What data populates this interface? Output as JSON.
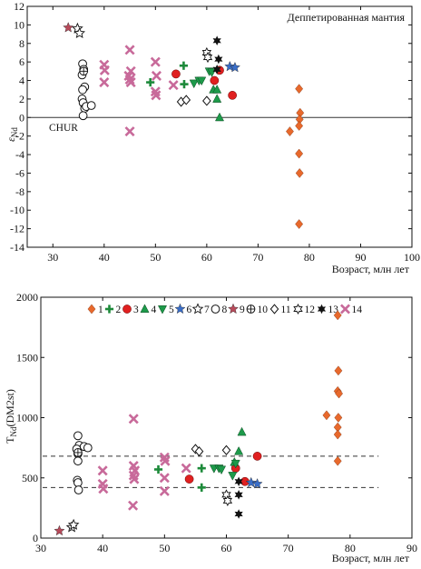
{
  "chart_data": [
    {
      "type": "scatter",
      "title": "",
      "annotation": "Деппетированная мантия",
      "xlabel": "Возраст, млн лет",
      "ylabel": "εNd",
      "ylabel_main": "ε",
      "ylabel_sub": "Nd",
      "xlim": [
        25,
        100
      ],
      "ylim": [
        -14,
        12
      ],
      "xticks": [
        30,
        40,
        50,
        60,
        70,
        80,
        90,
        100
      ],
      "yticks": [
        -14,
        -12,
        -10,
        -8,
        -6,
        -4,
        -2,
        0,
        2,
        4,
        6,
        8,
        10,
        12
      ],
      "reference_line": {
        "y": 0,
        "label": "CHUR"
      },
      "series": [
        {
          "name": "1",
          "marker": "diamond",
          "color": "#e8692c",
          "points": [
            [
              76.2,
              -1.5
            ],
            [
              78.0,
              3.1
            ],
            [
              78.2,
              0.5
            ],
            [
              78.1,
              -0.2
            ],
            [
              78.0,
              -0.9
            ],
            [
              78.0,
              -3.9
            ],
            [
              78.1,
              -6.0
            ],
            [
              78.0,
              -11.5
            ]
          ]
        },
        {
          "name": "2",
          "marker": "plus",
          "color": "#1d8a3a",
          "points": [
            [
              49.0,
              3.8
            ],
            [
              55.5,
              5.6
            ],
            [
              55.6,
              3.6
            ]
          ]
        },
        {
          "name": "3",
          "marker": "circle",
          "color": "#e02020",
          "points": [
            [
              54.0,
              4.7
            ],
            [
              61.5,
              4.0
            ],
            [
              62.5,
              5.1
            ],
            [
              65.0,
              2.4
            ]
          ]
        },
        {
          "name": "4",
          "marker": "triangle-up",
          "color": "#1d9a4a",
          "points": [
            [
              61.3,
              3.0
            ],
            [
              62.0,
              3.0
            ],
            [
              62.0,
              2.0
            ],
            [
              62.5,
              0.0
            ]
          ]
        },
        {
          "name": "5",
          "marker": "triangle-down",
          "color": "#1d9a4a",
          "points": [
            [
              57.5,
              3.7
            ],
            [
              58.5,
              4.0
            ],
            [
              59.0,
              4.0
            ],
            [
              60.5,
              5.0
            ],
            [
              61.0,
              4.9
            ]
          ]
        },
        {
          "name": "6",
          "marker": "star",
          "color": "#3a6ec8",
          "points": [
            [
              64.5,
              5.5
            ],
            [
              65.5,
              5.4
            ]
          ]
        },
        {
          "name": "7",
          "marker": "star-open",
          "color": "#111111",
          "points": [
            [
              34.8,
              9.6
            ],
            [
              35.2,
              9.1
            ]
          ]
        },
        {
          "name": "8",
          "marker": "circle-open",
          "color": "#111111",
          "points": [
            [
              35.8,
              5.8
            ],
            [
              36.0,
              5.2
            ],
            [
              35.7,
              4.6
            ],
            [
              36.2,
              3.3
            ],
            [
              35.8,
              3.0
            ],
            [
              35.7,
              2.0
            ],
            [
              35.9,
              1.6
            ],
            [
              36.2,
              1.0
            ],
            [
              36.5,
              1.2
            ],
            [
              37.5,
              1.3
            ],
            [
              35.9,
              0.2
            ]
          ]
        },
        {
          "name": "9",
          "marker": "star",
          "color": "#b84a5a",
          "points": [
            [
              33.0,
              9.7
            ]
          ]
        },
        {
          "name": "10",
          "marker": "circle-cross",
          "color": "#111111",
          "points": [
            [
              36.0,
              5.0
            ]
          ]
        },
        {
          "name": "11",
          "marker": "diamond-open",
          "color": "#111111",
          "points": [
            [
              55.0,
              1.7
            ],
            [
              56.0,
              1.9
            ],
            [
              60.0,
              1.8
            ]
          ]
        },
        {
          "name": "12",
          "marker": "star-open-6",
          "color": "#111111",
          "points": [
            [
              60.0,
              7.0
            ],
            [
              60.2,
              6.5
            ]
          ]
        },
        {
          "name": "13",
          "marker": "star-6",
          "color": "#111111",
          "points": [
            [
              62.0,
              8.3
            ],
            [
              62.3,
              6.3
            ],
            [
              62.0,
              5.2
            ]
          ]
        },
        {
          "name": "14",
          "marker": "x",
          "color": "#c86a9a",
          "points": [
            [
              40.0,
              5.7
            ],
            [
              40.1,
              5.1
            ],
            [
              40.0,
              3.8
            ],
            [
              45.0,
              7.3
            ],
            [
              45.2,
              5.0
            ],
            [
              44.8,
              4.5
            ],
            [
              45.0,
              4.1
            ],
            [
              45.2,
              3.8
            ],
            [
              45.0,
              -1.5
            ],
            [
              50.0,
              6.0
            ],
            [
              50.2,
              4.5
            ],
            [
              50.0,
              2.8
            ],
            [
              50.1,
              2.4
            ],
            [
              53.5,
              3.5
            ]
          ]
        }
      ]
    },
    {
      "type": "scatter",
      "title": "",
      "xlabel": "Возраст, млн лет",
      "ylabel": "TNd(DM2st)",
      "ylabel_main": "T",
      "ylabel_sub": "Nd",
      "ylabel_tail": "(DM2st)",
      "xlim": [
        30,
        90
      ],
      "ylim": [
        0,
        2000
      ],
      "xticks": [
        30,
        40,
        50,
        60,
        70,
        80,
        90
      ],
      "yticks": [
        0,
        500,
        1000,
        1500,
        2000
      ],
      "reference_lines": [
        {
          "y": 680
        },
        {
          "y": 420
        }
      ],
      "legend": {
        "placement": "top",
        "labels": [
          "1",
          "2",
          "3",
          "4",
          "5",
          "6",
          "7",
          "8",
          "9",
          "10",
          "11",
          "12",
          "13",
          "14"
        ]
      },
      "series": [
        {
          "name": "1",
          "marker": "diamond",
          "color": "#e8692c",
          "points": [
            [
              76.2,
              1020
            ],
            [
              78.0,
              1850
            ],
            [
              78.1,
              1390
            ],
            [
              78.0,
              1220
            ],
            [
              78.2,
              1200
            ],
            [
              78.1,
              1000
            ],
            [
              78.0,
              920
            ],
            [
              78.0,
              860
            ],
            [
              78.0,
              640
            ]
          ]
        },
        {
          "name": "2",
          "marker": "plus",
          "color": "#1d8a3a",
          "points": [
            [
              49.0,
              570
            ],
            [
              56.0,
              580
            ],
            [
              56.0,
              420
            ]
          ]
        },
        {
          "name": "3",
          "marker": "circle",
          "color": "#e02020",
          "points": [
            [
              54.0,
              490
            ],
            [
              61.5,
              580
            ],
            [
              63.0,
              470
            ],
            [
              65.0,
              680
            ]
          ]
        },
        {
          "name": "4",
          "marker": "triangle-up",
          "color": "#1d9a4a",
          "points": [
            [
              61.3,
              630
            ],
            [
              62.0,
              720
            ],
            [
              62.5,
              880
            ]
          ]
        },
        {
          "name": "5",
          "marker": "triangle-down",
          "color": "#1d9a4a",
          "points": [
            [
              58.0,
              580
            ],
            [
              58.8,
              580
            ],
            [
              59.2,
              570
            ],
            [
              61.0,
              520
            ],
            [
              61.5,
              620
            ]
          ]
        },
        {
          "name": "6",
          "marker": "star",
          "color": "#3a6ec8",
          "points": [
            [
              64.0,
              460
            ],
            [
              65.0,
              450
            ]
          ]
        },
        {
          "name": "7",
          "marker": "star-open",
          "color": "#111111",
          "points": [
            [
              35.0,
              90
            ],
            [
              35.3,
              110
            ]
          ]
        },
        {
          "name": "8",
          "marker": "circle-open",
          "color": "#111111",
          "points": [
            [
              36.0,
              850
            ],
            [
              36.2,
              770
            ],
            [
              35.8,
              740
            ],
            [
              37.0,
              760
            ],
            [
              37.6,
              750
            ],
            [
              36.0,
              700
            ],
            [
              36.0,
              640
            ],
            [
              35.9,
              480
            ],
            [
              36.0,
              460
            ],
            [
              36.1,
              400
            ]
          ]
        },
        {
          "name": "9",
          "marker": "star",
          "color": "#b84a5a",
          "points": [
            [
              33.0,
              60
            ]
          ]
        },
        {
          "name": "10",
          "marker": "circle-cross",
          "color": "#111111",
          "points": [
            [
              36.0,
              710
            ]
          ]
        },
        {
          "name": "11",
          "marker": "diamond-open",
          "color": "#111111",
          "points": [
            [
              55.0,
              740
            ],
            [
              55.6,
              720
            ],
            [
              60.0,
              730
            ]
          ]
        },
        {
          "name": "12",
          "marker": "star-open-6",
          "color": "#111111",
          "points": [
            [
              60.0,
              360
            ],
            [
              60.2,
              310
            ]
          ]
        },
        {
          "name": "13",
          "marker": "star-6",
          "color": "#111111",
          "points": [
            [
              62.0,
              470
            ],
            [
              62.0,
              360
            ],
            [
              62.0,
              200
            ]
          ]
        },
        {
          "name": "14",
          "marker": "x",
          "color": "#c86a9a",
          "points": [
            [
              40.0,
              560
            ],
            [
              40.0,
              450
            ],
            [
              40.1,
              410
            ],
            [
              45.0,
              990
            ],
            [
              45.0,
              600
            ],
            [
              45.2,
              560
            ],
            [
              45.0,
              520
            ],
            [
              45.1,
              490
            ],
            [
              44.9,
              270
            ],
            [
              50.0,
              670
            ],
            [
              50.1,
              640
            ],
            [
              50.0,
              500
            ],
            [
              50.0,
              390
            ],
            [
              53.5,
              580
            ]
          ]
        }
      ]
    }
  ]
}
